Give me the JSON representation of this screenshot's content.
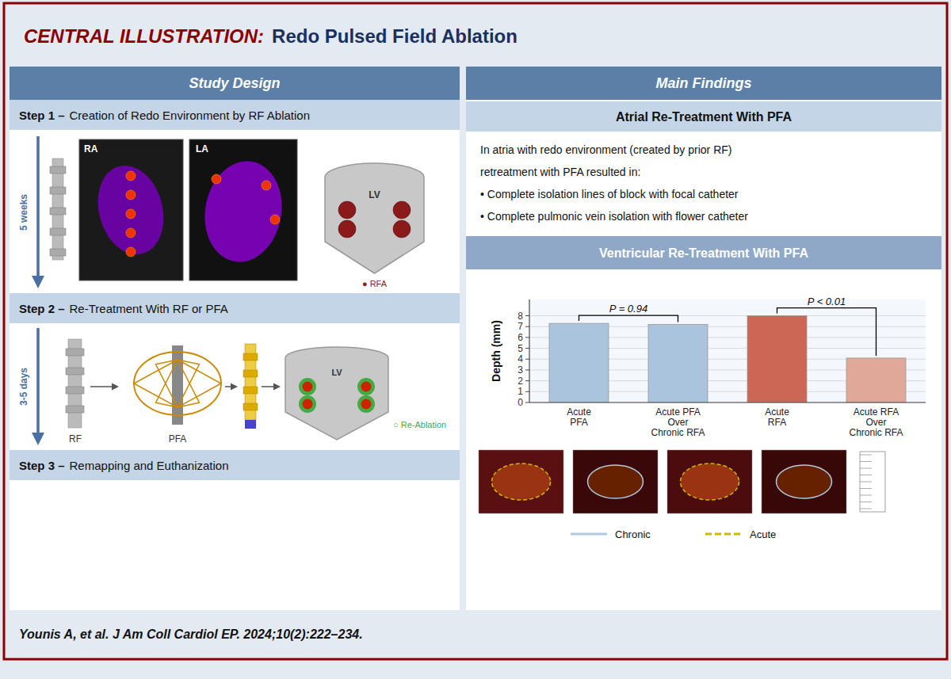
{
  "chart_data": {
    "type": "bar",
    "title": "CENTRAL ILLUSTRATION:",
    "subtitle": "Redo Pulsed Field Ablation",
    "categories": [
      "Acute\nPFA",
      "Acute PFA\nOver\nChronic RFA",
      "Acute\nRFA",
      "Acute RFA\nOver\nChronic RFA"
    ],
    "values": [
      7.3,
      7.2,
      8.0,
      4.1
    ],
    "colors": [
      "#aac4de",
      "#aac4de",
      "#cc6655",
      "#e0a898"
    ],
    "y_label": "Depth (mm)",
    "ylim": [
      0,
      9.5
    ],
    "yticks": [
      0,
      1,
      2,
      3,
      4,
      5,
      6,
      7,
      8
    ],
    "grid": true,
    "annotations": [
      {
        "text": "Study Design"
      },
      {
        "text": "Main Findings"
      },
      {
        "text": "Step 1 –"
      },
      {
        "text": "Creation of Redo Environment by RF Ablation"
      },
      {
        "text": "5 weeks",
        "color": "#4a6fa5"
      },
      {
        "text": "RA"
      },
      {
        "text": "LA"
      },
      {
        "text": "LV"
      },
      {
        "text": "● RFA",
        "color": "#8B1a1a"
      },
      {
        "text": "Step 2 –"
      },
      {
        "text": "Re-Treatment With RF or PFA"
      },
      {
        "text": "3-5 days",
        "color": "#4a6fa5"
      },
      {
        "text": "RF"
      },
      {
        "text": "PFA"
      },
      {
        "text": "LV"
      },
      {
        "text": "○ Re-Ablation",
        "color": "#44aa44"
      },
      {
        "text": "Step 3 –"
      },
      {
        "text": "Remapping and Euthanization"
      },
      {
        "text": "Atrial Re-Treatment With PFA"
      },
      {
        "text": "In atria with redo environment (created by prior RF)"
      },
      {
        "text": "retreatment with PFA resulted in:"
      },
      {
        "text": "• Complete isolation lines of block with focal catheter"
      },
      {
        "text": "• Complete pulmonic vein isolation with flower catheter"
      },
      {
        "text": "Ventricular Re-Treatment With PFA"
      },
      {
        "text": "P = 0.94"
      },
      {
        "text": "P < 0.01"
      },
      {
        "text": "Chronic",
        "color": "#b0c8e0"
      },
      {
        "text": "Acute",
        "color": "#ccbb00"
      },
      {
        "text": "Younis A, et al. J Am Coll Cardiol EP. 2024;10(2):222–234."
      }
    ]
  }
}
